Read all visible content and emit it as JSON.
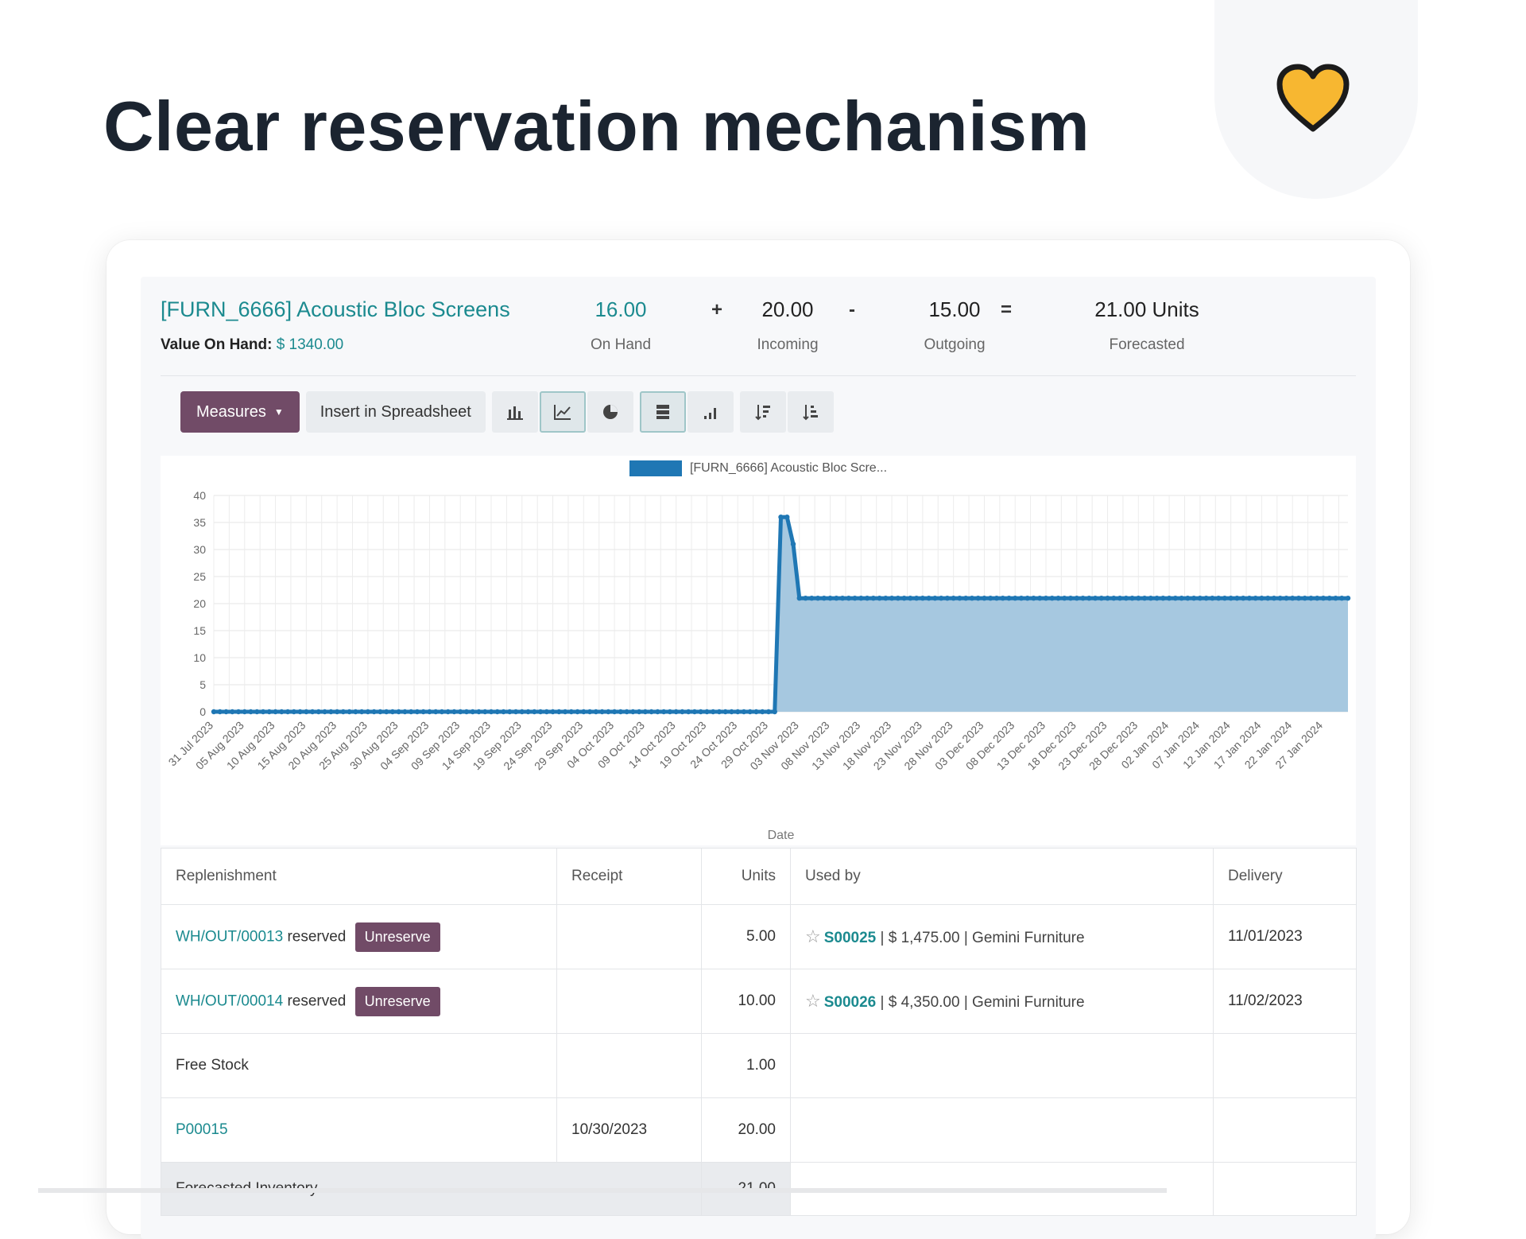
{
  "hero": {
    "title": "Clear reservation mechanism"
  },
  "header": {
    "product_name": "[FURN_6666] Acoustic Bloc Screens",
    "value_label": "Value On Hand:",
    "value_amount": "$ 1340.00",
    "kpis": [
      {
        "value": "16.00",
        "label": "On Hand"
      },
      {
        "value": "20.00",
        "label": "Incoming"
      },
      {
        "value": "15.00",
        "label": "Outgoing"
      },
      {
        "value": "21.00 Units",
        "label": "Forecasted"
      }
    ],
    "operators": [
      "+",
      "-",
      "="
    ]
  },
  "toolbar": {
    "measures_label": "Measures",
    "insert_label": "Insert in Spreadsheet",
    "icons": [
      "bar-chart-icon",
      "line-chart-icon",
      "pie-chart-icon",
      "stacked-icon",
      "cumulative-icon",
      "sort-descending-icon",
      "sort-ascending-icon"
    ],
    "active_chart": "line-chart-icon",
    "active_toggle": "stacked-icon"
  },
  "chart_data": {
    "type": "area",
    "legend": [
      "[FURN_6666] Acoustic Bloc Scre..."
    ],
    "xlabel": "Date",
    "ylabel": "",
    "ylim": [
      0,
      40
    ],
    "yticks": [
      0,
      5,
      10,
      15,
      20,
      25,
      30,
      35,
      40
    ],
    "grid": true,
    "color": "#1f77b4",
    "fill_color": "#a6c8e0",
    "categories": [
      "31 Jul 2023",
      "05 Aug 2023",
      "10 Aug 2023",
      "15 Aug 2023",
      "20 Aug 2023",
      "25 Aug 2023",
      "30 Aug 2023",
      "04 Sep 2023",
      "09 Sep 2023",
      "14 Sep 2023",
      "19 Sep 2023",
      "24 Sep 2023",
      "29 Sep 2023",
      "04 Oct 2023",
      "09 Oct 2023",
      "14 Oct 2023",
      "19 Oct 2023",
      "24 Oct 2023",
      "29 Oct 2023",
      "03 Nov 2023",
      "08 Nov 2023",
      "13 Nov 2023",
      "18 Nov 2023",
      "23 Nov 2023",
      "28 Nov 2023",
      "03 Dec 2023",
      "08 Dec 2023",
      "13 Dec 2023",
      "18 Dec 2023",
      "23 Dec 2023",
      "28 Dec 2023",
      "02 Jan 2024",
      "07 Jan 2024",
      "12 Jan 2024",
      "17 Jan 2024",
      "22 Jan 2024",
      "27 Jan 2024"
    ],
    "series": [
      {
        "name": "[FURN_6666] Acoustic Bloc Scre...",
        "points": [
          {
            "x": "2023-07-31",
            "y": 0
          },
          {
            "x": "2023-10-30",
            "y": 0
          },
          {
            "x": "2023-10-31",
            "y": 36
          },
          {
            "x": "2023-11-01",
            "y": 36
          },
          {
            "x": "2023-11-02",
            "y": 31
          },
          {
            "x": "2023-11-03",
            "y": 21
          },
          {
            "x": "2024-01-31",
            "y": 21
          }
        ]
      }
    ]
  },
  "table": {
    "headers": [
      "Replenishment",
      "Receipt",
      "Units",
      "Used by",
      "Delivery"
    ],
    "rows": [
      {
        "ref": "WH/OUT/00013",
        "status": "reserved",
        "action": "Unreserve",
        "receipt": "",
        "units": "5.00",
        "so": "S00025",
        "so_rest": " | $ 1,475.00 | Gemini Furniture",
        "delivery": "11/01/2023"
      },
      {
        "ref": "WH/OUT/00014",
        "status": "reserved",
        "action": "Unreserve",
        "receipt": "",
        "units": "10.00",
        "so": "S00026",
        "so_rest": " | $ 4,350.00 | Gemini Furniture",
        "delivery": "11/02/2023"
      }
    ],
    "free_stock": {
      "label": "Free Stock",
      "units": "1.00"
    },
    "po_row": {
      "ref": "P00015",
      "receipt": "10/30/2023",
      "units": "20.00"
    },
    "forecast": {
      "label": "Forecasted Inventory",
      "units": "21.00"
    }
  },
  "colors": {
    "brand_purple": "#714b67",
    "teal": "#1b8a8f",
    "chart_blue": "#1f77b4",
    "heart": "#f7b731"
  }
}
